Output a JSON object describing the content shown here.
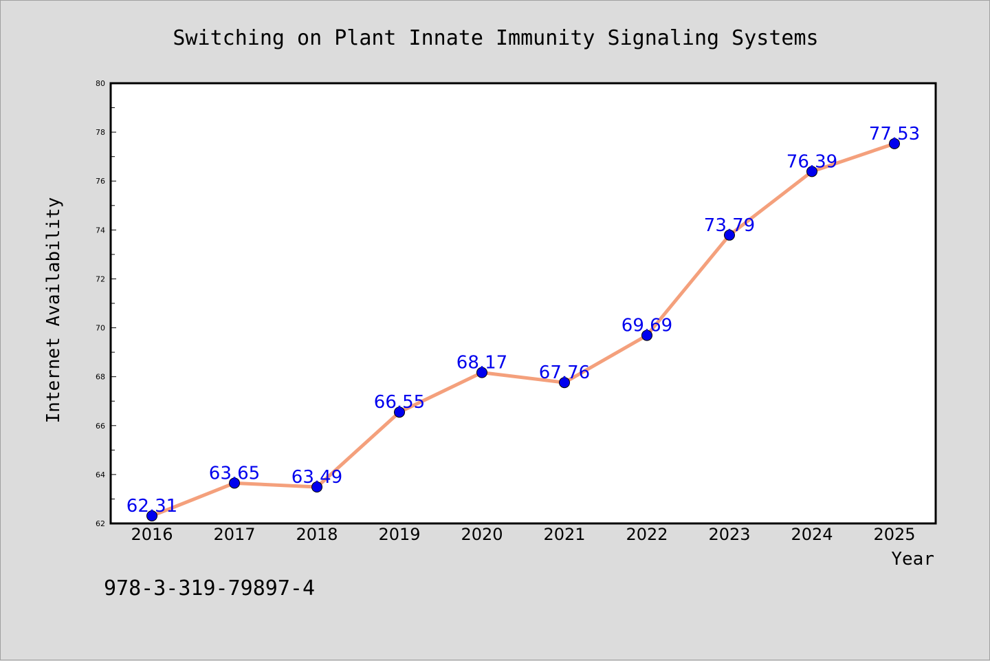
{
  "chart_data": {
    "type": "line",
    "title": "Switching on Plant Innate Immunity Signaling Systems",
    "xlabel": "Year",
    "ylabel": "Internet Availability",
    "categories": [
      "2016",
      "2017",
      "2018",
      "2019",
      "2020",
      "2021",
      "2022",
      "2023",
      "2024",
      "2025"
    ],
    "series": [
      {
        "values": [
          62.31,
          63.65,
          63.49,
          66.55,
          68.17,
          67.76,
          69.69,
          73.79,
          76.39,
          77.53
        ],
        "labels": [
          "62.31",
          "63.65",
          "63.49",
          "66.55",
          "68.17",
          "67.76",
          "69.69",
          "73.79",
          "76.39",
          "77.53"
        ]
      }
    ],
    "ylim": [
      62,
      80
    ],
    "yticks": [
      "62",
      "64",
      "66",
      "68",
      "70",
      "72",
      "74",
      "76",
      "78",
      "80"
    ],
    "grid": false,
    "legend": "none",
    "colors": {
      "line": "#f4a07c",
      "marker": "#0000ee",
      "data_label": "#0000ee",
      "plot_background": "#ffffff",
      "figure_background": "#dcdcdc"
    }
  },
  "footer_text": "978-3-319-79897-4"
}
